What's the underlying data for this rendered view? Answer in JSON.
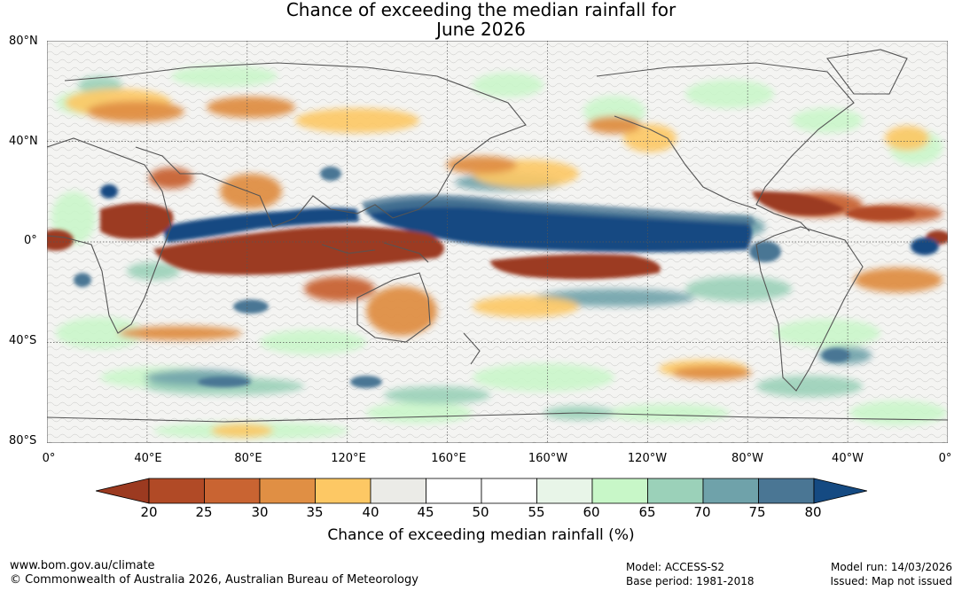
{
  "title": {
    "line1": "Chance of exceeding the median rainfall for",
    "line2": "June 2026"
  },
  "map": {
    "lat_labels": [
      "80°N",
      "40°N",
      "0°",
      "40°S",
      "80°S"
    ],
    "lon_labels": [
      "0°",
      "40°E",
      "80°E",
      "120°E",
      "160°E",
      "160°W",
      "120°W",
      "80°W",
      "40°W",
      "0°"
    ]
  },
  "colorbar": {
    "ticks": [
      "20",
      "25",
      "30",
      "35",
      "40",
      "45",
      "50",
      "55",
      "60",
      "65",
      "70",
      "75",
      "80"
    ],
    "colors": [
      "#9c3a20",
      "#b14a26",
      "#c96432",
      "#e08f44",
      "#fdc864",
      "#ebebe7",
      "#ffffff",
      "#ffffff",
      "#e8f5e8",
      "#c8f7c8",
      "#9bd1b9",
      "#6fa2aa",
      "#4a7694",
      "#154a82"
    ],
    "label": "Chance of exceeding median rainfall (%)"
  },
  "footer": {
    "url": "www.bom.gov.au/climate",
    "copyright": "© Commonwealth of Australia 2026, Australian Bureau of Meteorology",
    "model": "Model: ACCESS-S2",
    "base_period": "Base period: 1981-2018",
    "model_run": "Model run: 14/03/2026",
    "issued": "Issued: Map not issued"
  }
}
